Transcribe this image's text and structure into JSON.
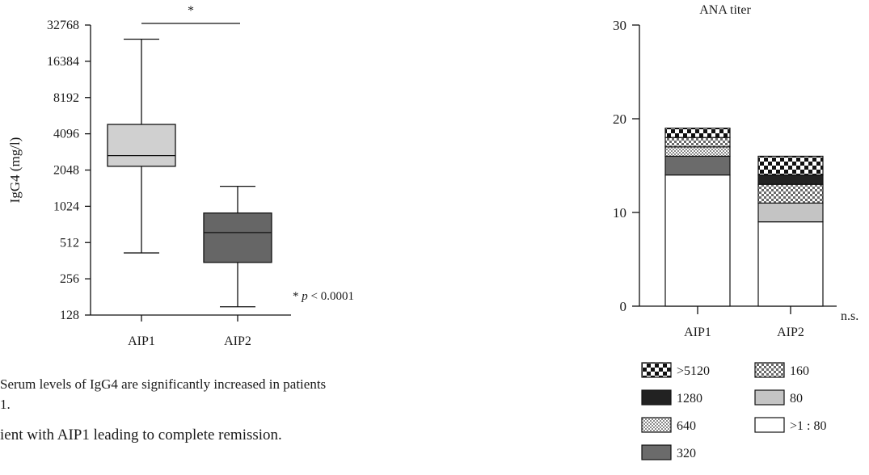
{
  "chart_data": [
    {
      "type": "box",
      "ylabel": "IgG4 (mg/l)",
      "y_scale": "log2",
      "y_ticks": [
        128,
        256,
        512,
        1024,
        2048,
        4096,
        8192,
        16384,
        32768
      ],
      "ylim": [
        128,
        32768
      ],
      "categories": [
        "AIP1",
        "AIP2"
      ],
      "boxes": [
        {
          "category": "AIP1",
          "whisker_low": 420,
          "q1": 2200,
          "median": 2700,
          "q3": 4900,
          "whisker_high": 25000,
          "fill": "#d0d0d0"
        },
        {
          "category": "AIP2",
          "whisker_low": 150,
          "q1": 350,
          "median": 620,
          "q3": 900,
          "whisker_high": 1500,
          "fill": "#666666"
        }
      ],
      "significance_marker": "*",
      "annotation": {
        "star": "*",
        "p": "p",
        "rest": " < 0.0001"
      }
    },
    {
      "type": "stacked-bar",
      "title": "ANA titer",
      "categories": [
        "AIP1",
        "AIP2"
      ],
      "ylim": [
        0,
        30
      ],
      "y_ticks": [
        0,
        10,
        20,
        30
      ],
      "note": "n.s.",
      "series": [
        {
          "name": ">1 : 80",
          "pattern": "white",
          "values": [
            14,
            9
          ]
        },
        {
          "name": "80",
          "pattern": "lightgray",
          "values": [
            0,
            2
          ]
        },
        {
          "name": "320",
          "pattern": "darkgray",
          "values": [
            2,
            0
          ]
        },
        {
          "name": "640",
          "pattern": "finecheck",
          "values": [
            1,
            0
          ]
        },
        {
          "name": "160",
          "pattern": "check",
          "values": [
            1,
            2
          ]
        },
        {
          "name": "1280",
          "pattern": "black",
          "values": [
            0,
            1
          ]
        },
        {
          "name": ">5120",
          "pattern": "bigcheck",
          "values": [
            1,
            2
          ]
        }
      ]
    }
  ],
  "text": {
    "caption_line1": " Serum levels of IgG4 are significantly increased in patients",
    "caption_line2": "1.",
    "body_line1": "ient  with  AIP1  leading  to  complete  remission."
  },
  "legend": [
    {
      "label": ">5120",
      "pattern": "bigcheck"
    },
    {
      "label": "160",
      "pattern": "check"
    },
    {
      "label": "1280",
      "pattern": "black"
    },
    {
      "label": "80",
      "pattern": "lightgray"
    },
    {
      "label": "640",
      "pattern": "finecheck"
    },
    {
      "label": ">1 : 80",
      "pattern": "white"
    },
    {
      "label": "320",
      "pattern": "darkgray"
    }
  ]
}
